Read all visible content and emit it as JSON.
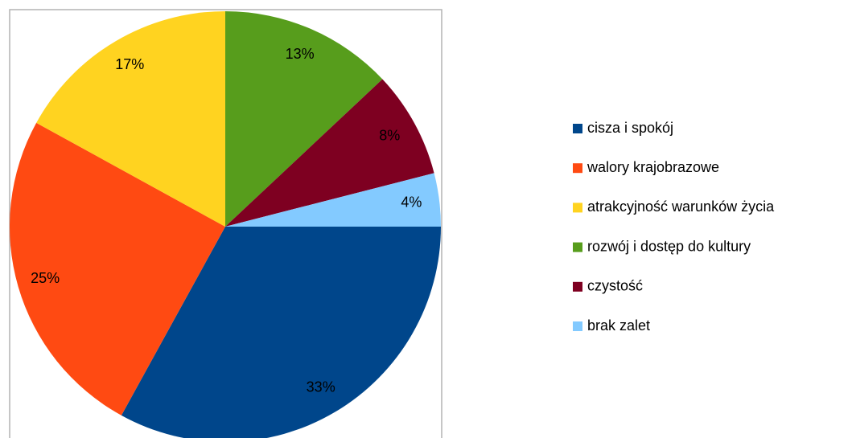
{
  "chart_data": {
    "type": "pie",
    "categories": [
      "cisza i spokój",
      "walory krajobrazowe",
      "atrakcyjność warunków życia",
      "rozwój i dostęp do kultury",
      "czystość",
      "brak zalet"
    ],
    "values": [
      33,
      25,
      17,
      13,
      8,
      4
    ],
    "value_labels": [
      "33%",
      "25%",
      "17%",
      "13%",
      "8%",
      "4%"
    ],
    "colors": [
      "#00468b",
      "#ff4a12",
      "#ffd320",
      "#579d1c",
      "#7e0021",
      "#83caff"
    ],
    "legend": "right"
  }
}
